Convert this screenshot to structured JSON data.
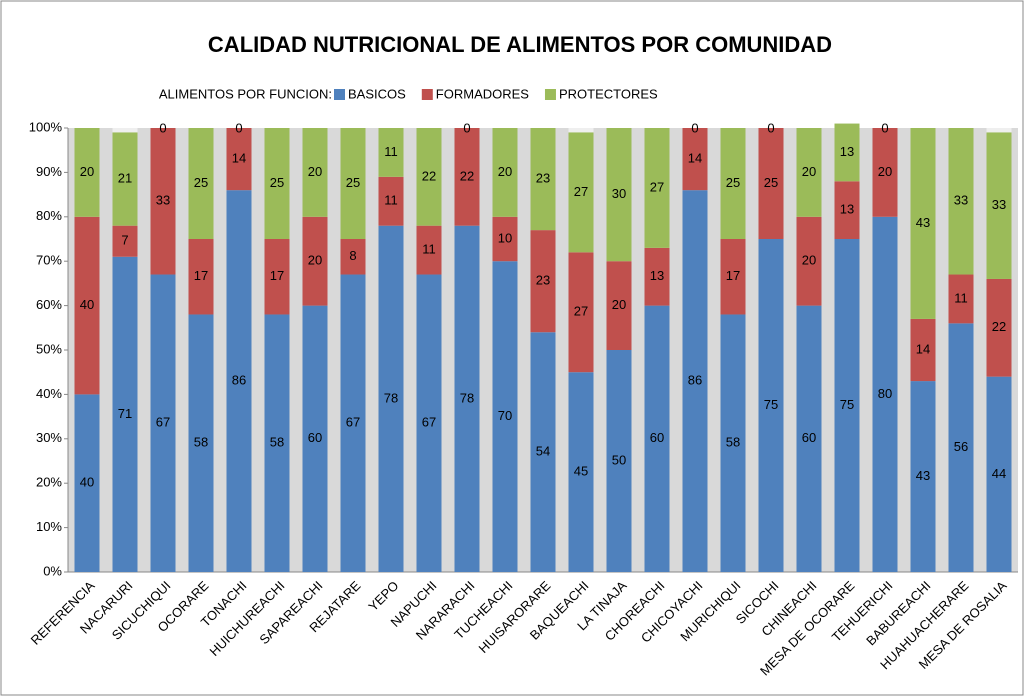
{
  "chart_data": {
    "type": "stacked_bar_percent",
    "title": "CALIDAD NUTRICIONAL DE ALIMENTOS POR COMUNIDAD",
    "legend_title": "ALIMENTOS POR FUNCION:",
    "categories": [
      "REFERENCIA",
      "NACARURI",
      "SICUCHIQUI",
      "OCORARE",
      "TONACHI",
      "HUICHUREACHI",
      "SAPAREACHI",
      "REJATARE",
      "YEPO",
      "NAPUCHI",
      "NARARACHI",
      "TUCHEACHI",
      "HUISARORARE",
      "BAQUEACHI",
      "LA TINAJA",
      "CHOREACHI",
      "CHICOYACHI",
      "MURICHIQUI",
      "SICOCHI",
      "CHINEACHI",
      "MESA DE OCORARE",
      "TEHUERICHI",
      "BABUREACHI",
      "HUAHUACHERARE",
      "MESA DE ROSALIA"
    ],
    "series": [
      {
        "name": "BASICOS",
        "color": "#4f81bd",
        "values": [
          40,
          71,
          67,
          58,
          86,
          58,
          60,
          67,
          78,
          67,
          78,
          70,
          54,
          45,
          50,
          60,
          86,
          58,
          75,
          60,
          75,
          80,
          43,
          56,
          44
        ]
      },
      {
        "name": "FORMADORES",
        "color": "#c0504d",
        "values": [
          40,
          7,
          33,
          17,
          14,
          17,
          20,
          8,
          11,
          11,
          22,
          10,
          23,
          27,
          20,
          13,
          14,
          17,
          25,
          20,
          13,
          20,
          14,
          11,
          22
        ]
      },
      {
        "name": "PROTECTORES",
        "color": "#9bbb59",
        "values": [
          20,
          21,
          0,
          25,
          0,
          25,
          20,
          25,
          11,
          22,
          0,
          20,
          23,
          27,
          30,
          27,
          0,
          25,
          0,
          20,
          13,
          0,
          43,
          33,
          33
        ]
      }
    ],
    "ylim": [
      0,
      100
    ],
    "yticks": [
      {
        "value": 0,
        "label": "0%"
      },
      {
        "value": 10,
        "label": "10%"
      },
      {
        "value": 20,
        "label": "20%"
      },
      {
        "value": 30,
        "label": "30%"
      },
      {
        "value": 40,
        "label": "40%"
      },
      {
        "value": 50,
        "label": "50%"
      },
      {
        "value": 60,
        "label": "60%"
      },
      {
        "value": 70,
        "label": "70%"
      },
      {
        "value": 80,
        "label": "80%"
      },
      {
        "value": 90,
        "label": "90%"
      },
      {
        "value": 100,
        "label": "100%"
      }
    ]
  }
}
